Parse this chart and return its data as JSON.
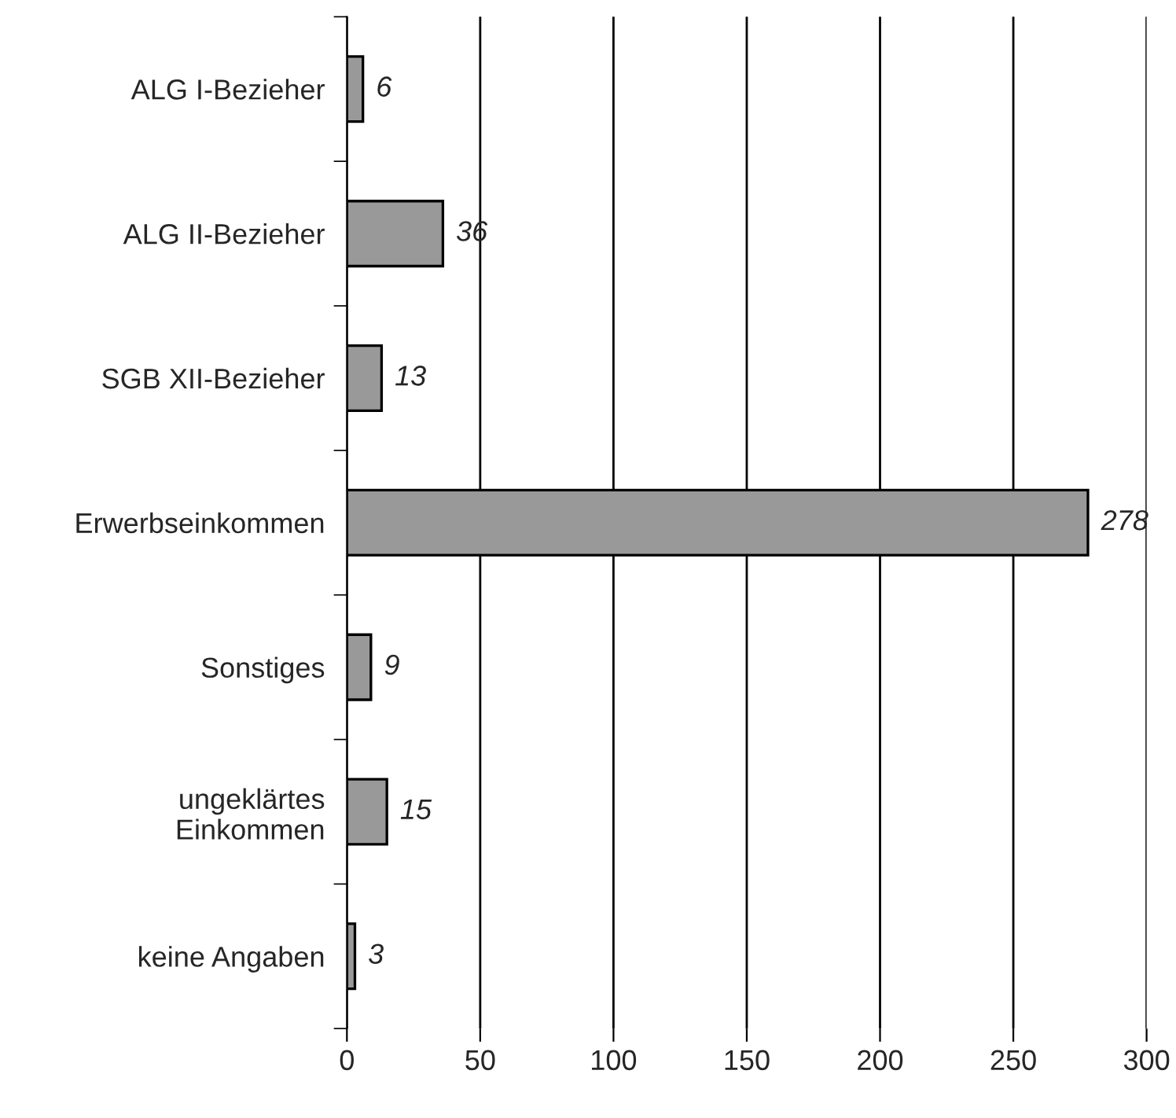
{
  "chart_data": {
    "type": "bar",
    "orientation": "horizontal",
    "categories": [
      "ALG I-Bezieher",
      "ALG II-Bezieher",
      "SGB XII-Bezieher",
      "Erwerbseinkommen",
      "Sonstiges",
      "ungeklärtes\nEinkommen",
      "keine Angaben"
    ],
    "values": [
      6,
      36,
      13,
      278,
      9,
      15,
      3
    ],
    "color": "#999999",
    "xlim": [
      0,
      300
    ],
    "xticks": [
      0,
      50,
      100,
      150,
      200,
      250,
      300
    ],
    "grid": "x",
    "data_labels": true
  }
}
